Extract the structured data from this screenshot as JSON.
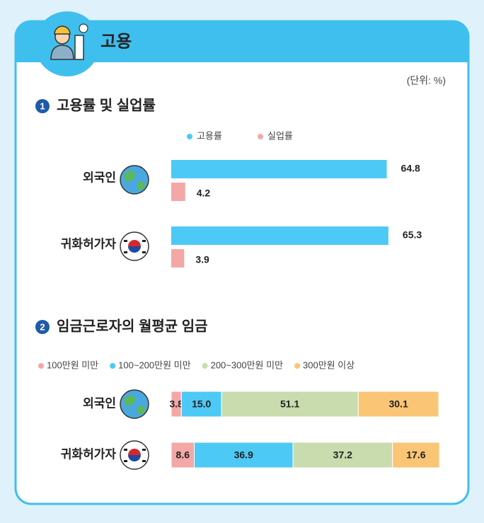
{
  "header": {
    "title": "고용",
    "unit": "(단위: %)"
  },
  "chart_data": [
    {
      "type": "bar",
      "number": 1,
      "title": "고용률 및 실업률",
      "orientation": "horizontal",
      "categories": [
        "외국인",
        "귀화허가자"
      ],
      "series": [
        {
          "name": "고용률",
          "color": "#4dc9f6",
          "values": [
            64.8,
            65.3
          ]
        },
        {
          "name": "실업률",
          "color": "#f4a7a7",
          "values": [
            4.2,
            3.9
          ]
        }
      ]
    },
    {
      "type": "stacked_bar",
      "number": 2,
      "title": "임금근로자의 월평균 임금",
      "orientation": "horizontal",
      "categories": [
        "외국인",
        "귀화허가자"
      ],
      "series": [
        {
          "name": "100만원 미만",
          "color": "#f4a7a7",
          "values": [
            3.8,
            8.6
          ]
        },
        {
          "name": "100~200만원 미만",
          "color": "#4dc9f6",
          "values": [
            15,
            36.9
          ],
          "value_labels": [
            "15.0",
            "36.9"
          ]
        },
        {
          "name": "200~300만원 미만",
          "color": "#c8dcae",
          "values": [
            51.1,
            37.2
          ]
        },
        {
          "name": "300만원 이상",
          "color": "#fbc576",
          "values": [
            30.1,
            17.6
          ]
        }
      ]
    }
  ]
}
